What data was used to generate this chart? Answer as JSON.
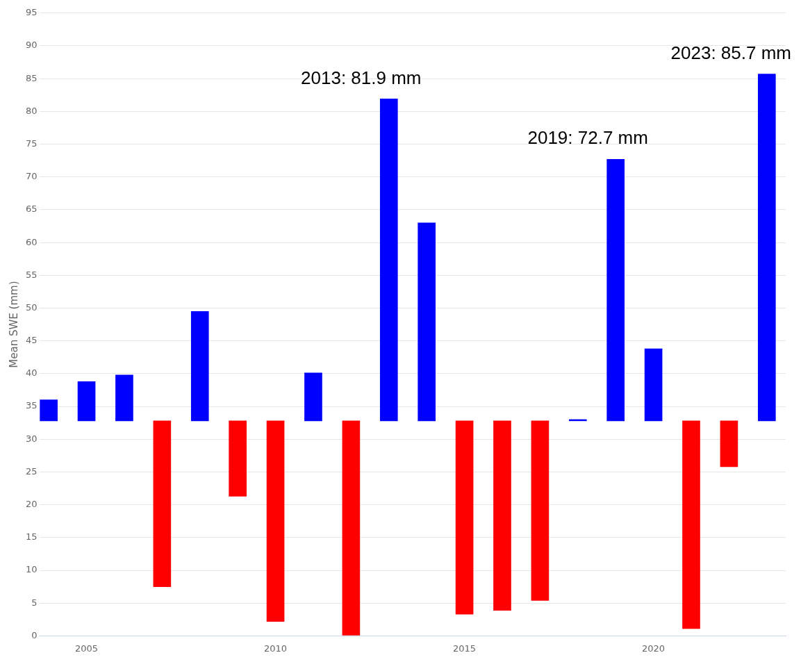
{
  "chart_data": {
    "type": "bar",
    "ylabel": "Mean SWE (mm)",
    "x": [
      2004,
      2005,
      2006,
      2007,
      2008,
      2009,
      2010,
      2011,
      2012,
      2013,
      2014,
      2015,
      2016,
      2017,
      2018,
      2019,
      2020,
      2021,
      2022,
      2023
    ],
    "base": [
      32.8,
      32.8,
      32.8,
      32.8,
      32.8,
      32.8,
      32.8,
      32.8,
      32.8,
      32.8,
      32.8,
      32.8,
      32.8,
      32.8,
      32.8,
      32.8,
      32.8,
      32.8,
      32.8,
      32.8
    ],
    "values": [
      3.2,
      6.0,
      7.0,
      -25.3,
      16.7,
      -11.5,
      -30.6,
      7.3,
      -32.7,
      49.1,
      30.2,
      -29.5,
      -28.9,
      -27.4,
      0.2,
      39.9,
      11.0,
      -31.7,
      -7.0,
      52.9
    ],
    "colors": [
      "#0000ff",
      "#0000ff",
      "#0000ff",
      "#ff0000",
      "#0000ff",
      "#ff0000",
      "#ff0000",
      "#0000ff",
      "#ff0000",
      "#0000ff",
      "#0000ff",
      "#ff0000",
      "#ff0000",
      "#ff0000",
      "#0000ff",
      "#0000ff",
      "#0000ff",
      "#ff0000",
      "#ff0000",
      "#0000ff"
    ],
    "xlim": [
      2003.75,
      2023.5
    ],
    "xticks": [
      2005,
      2010,
      2015,
      2020
    ],
    "ylim": [
      0,
      95
    ],
    "yticks": [
      0,
      5,
      10,
      15,
      20,
      25,
      30,
      35,
      40,
      45,
      50,
      55,
      60,
      65,
      70,
      75,
      80,
      85,
      90,
      95
    ],
    "grid": "y",
    "legend": false,
    "annotations": [
      {
        "text": "2013: 81.9 mm",
        "x": 2013,
        "y": 81.9
      },
      {
        "text": "2019: 72.7 mm",
        "x": 2019,
        "y": 72.7
      },
      {
        "text": "2023: 85.7 mm",
        "x": 2023,
        "y": 85.7
      }
    ]
  }
}
